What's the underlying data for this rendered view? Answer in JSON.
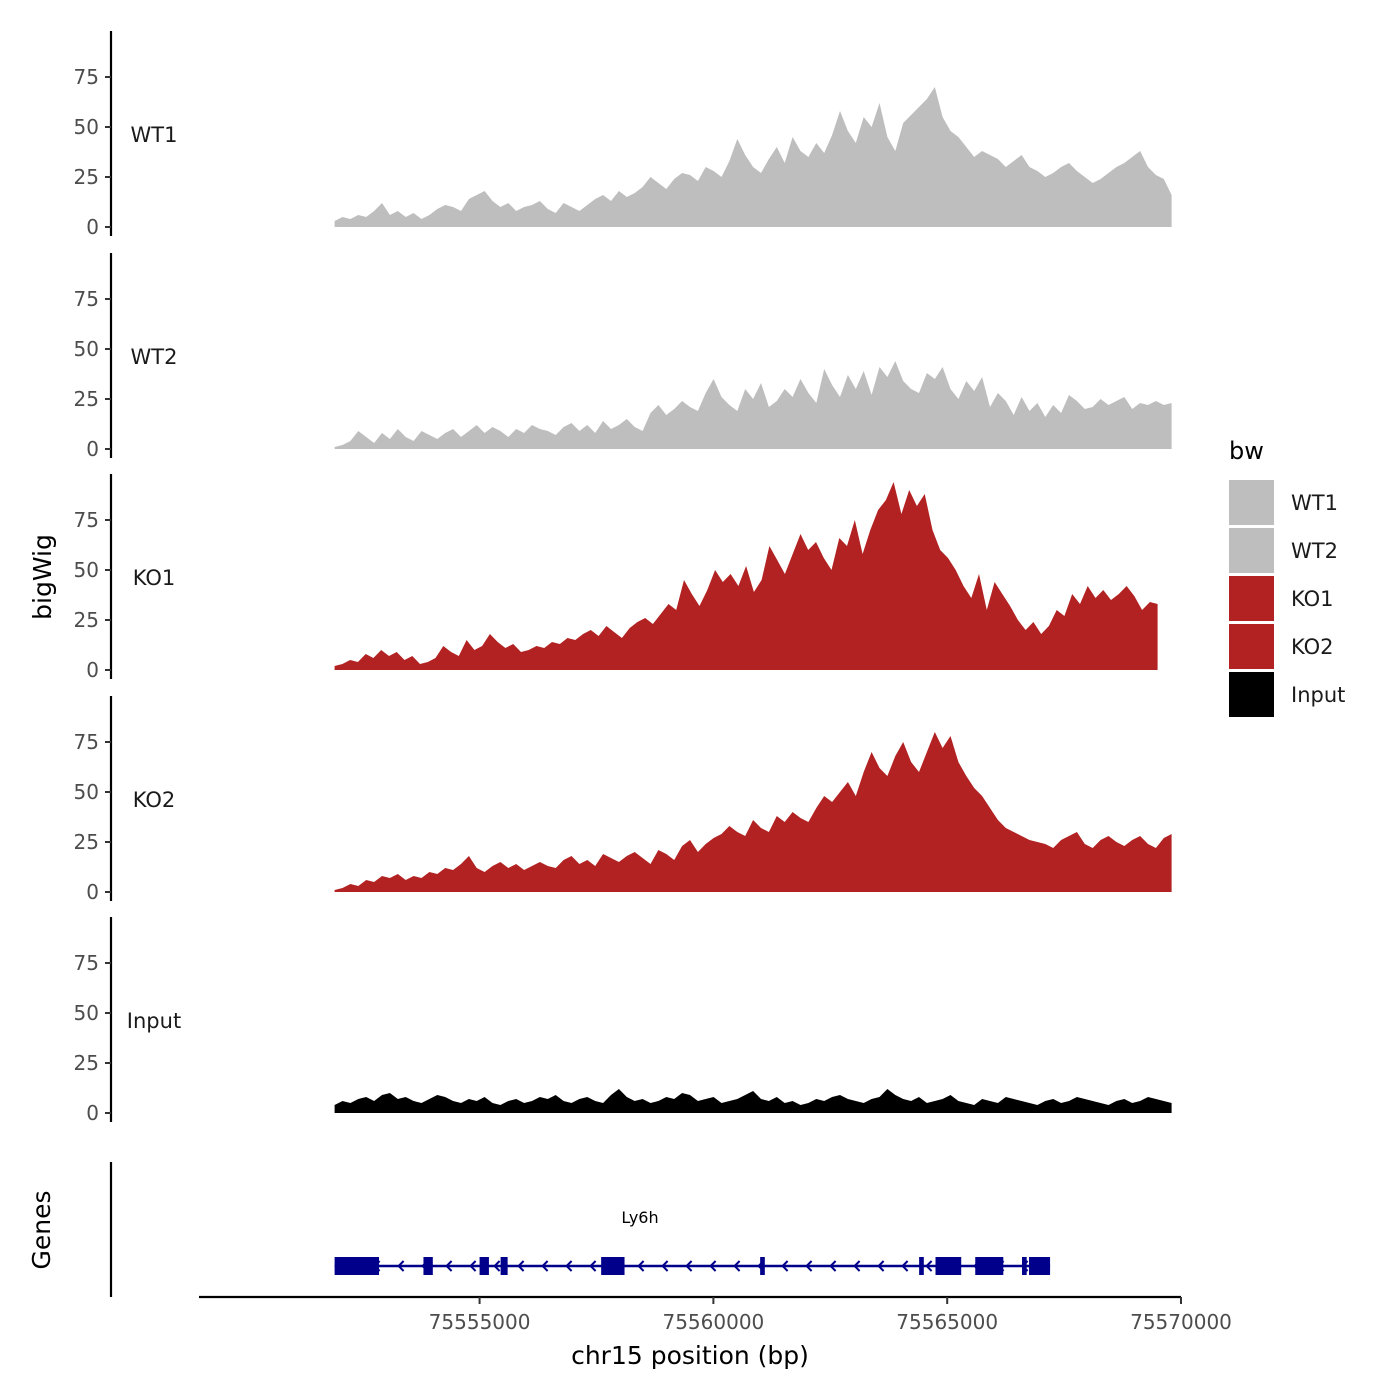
{
  "chart_data": {
    "type": "area",
    "ylabel": "bigWig",
    "xlabel": "chr15 position (bp)",
    "ylim": [
      0,
      95
    ],
    "yticks": [
      0,
      25,
      50,
      75
    ],
    "xlim": [
      75549000,
      75570000
    ],
    "xticks": [
      75555000,
      75560000,
      75565000,
      75570000
    ],
    "x_range_data": [
      75551900,
      75569800
    ],
    "gene_track_label": "Genes",
    "legend": {
      "title": "bw",
      "entries": [
        {
          "label": "WT1",
          "color": "#bebebe"
        },
        {
          "label": "WT2",
          "color": "#bebebe"
        },
        {
          "label": "KO1",
          "color": "#b22222"
        },
        {
          "label": "KO2",
          "color": "#b22222"
        },
        {
          "label": "Input",
          "color": "#000000"
        }
      ]
    },
    "tracks": [
      {
        "name": "WT1",
        "color": "#bebebe",
        "x_start": 75551900,
        "x_end": 75569800,
        "values": [
          3,
          5,
          4,
          6,
          5,
          8,
          12,
          6,
          8,
          5,
          7,
          4,
          6,
          9,
          11,
          10,
          8,
          14,
          16,
          18,
          13,
          10,
          12,
          8,
          10,
          11,
          13,
          9,
          7,
          12,
          10,
          8,
          11,
          14,
          16,
          13,
          18,
          15,
          17,
          20,
          25,
          22,
          19,
          24,
          27,
          26,
          23,
          30,
          28,
          25,
          33,
          44,
          36,
          30,
          27,
          34,
          40,
          32,
          45,
          38,
          35,
          42,
          37,
          46,
          58,
          48,
          42,
          55,
          50,
          62,
          45,
          38,
          52,
          56,
          60,
          64,
          70,
          55,
          48,
          45,
          40,
          35,
          38,
          36,
          34,
          30,
          33,
          36,
          30,
          28,
          25,
          27,
          30,
          32,
          28,
          25,
          22,
          24,
          27,
          30,
          32,
          35,
          38,
          30,
          26,
          24,
          16
        ]
      },
      {
        "name": "WT2",
        "color": "#bebebe",
        "x_start": 75551900,
        "x_end": 75569800,
        "values": [
          1,
          2,
          4,
          9,
          6,
          3,
          8,
          5,
          10,
          6,
          4,
          9,
          7,
          5,
          8,
          10,
          6,
          9,
          12,
          8,
          11,
          9,
          6,
          10,
          8,
          12,
          10,
          9,
          7,
          11,
          13,
          9,
          12,
          8,
          14,
          10,
          12,
          15,
          11,
          9,
          18,
          22,
          17,
          20,
          24,
          21,
          19,
          28,
          35,
          26,
          22,
          19,
          30,
          25,
          33,
          21,
          24,
          30,
          26,
          35,
          28,
          23,
          40,
          32,
          26,
          37,
          30,
          39,
          27,
          41,
          36,
          44,
          34,
          30,
          28,
          38,
          35,
          41,
          30,
          25,
          34,
          29,
          36,
          21,
          28,
          24,
          17,
          26,
          19,
          23,
          16,
          22,
          18,
          27,
          24,
          20,
          21,
          25,
          22,
          24,
          26,
          20,
          23,
          22,
          24,
          22,
          23
        ]
      },
      {
        "name": "KO1",
        "color": "#b22222",
        "x_start": 75551900,
        "x_end": 75569500,
        "values": [
          2,
          3,
          5,
          4,
          8,
          6,
          10,
          7,
          9,
          5,
          7,
          3,
          4,
          6,
          12,
          9,
          7,
          15,
          10,
          12,
          18,
          14,
          11,
          13,
          9,
          10,
          12,
          11,
          14,
          13,
          16,
          15,
          18,
          20,
          17,
          22,
          19,
          16,
          21,
          24,
          26,
          23,
          28,
          33,
          30,
          45,
          38,
          32,
          40,
          50,
          44,
          48,
          42,
          52,
          39,
          45,
          62,
          55,
          48,
          58,
          68,
          60,
          64,
          56,
          50,
          66,
          62,
          75,
          58,
          70,
          80,
          85,
          94,
          78,
          90,
          82,
          88,
          70,
          60,
          56,
          50,
          42,
          36,
          48,
          30,
          44,
          38,
          32,
          25,
          20,
          24,
          18,
          22,
          30,
          27,
          38,
          33,
          42,
          36,
          40,
          35,
          38,
          42,
          37,
          30,
          34,
          33
        ]
      },
      {
        "name": "KO2",
        "color": "#b22222",
        "x_start": 75551900,
        "x_end": 75569800,
        "values": [
          1,
          2,
          4,
          3,
          6,
          5,
          8,
          7,
          9,
          6,
          8,
          7,
          10,
          9,
          12,
          11,
          14,
          18,
          12,
          10,
          13,
          15,
          12,
          14,
          11,
          13,
          15,
          13,
          12,
          16,
          18,
          14,
          16,
          13,
          19,
          17,
          15,
          18,
          20,
          17,
          14,
          21,
          19,
          16,
          23,
          26,
          20,
          24,
          27,
          29,
          33,
          30,
          28,
          36,
          32,
          30,
          38,
          35,
          40,
          37,
          35,
          42,
          48,
          45,
          50,
          55,
          48,
          60,
          70,
          62,
          58,
          68,
          75,
          65,
          60,
          70,
          80,
          72,
          78,
          65,
          58,
          52,
          48,
          42,
          36,
          32,
          30,
          28,
          26,
          25,
          24,
          22,
          26,
          28,
          30,
          24,
          22,
          26,
          28,
          25,
          23,
          26,
          28,
          24,
          22,
          27,
          29
        ]
      },
      {
        "name": "Input",
        "color": "#000000",
        "x_start": 75551900,
        "x_end": 75569800,
        "values": [
          4,
          6,
          5,
          7,
          8,
          6,
          9,
          10,
          7,
          8,
          6,
          5,
          7,
          9,
          8,
          6,
          5,
          7,
          6,
          8,
          5,
          4,
          6,
          7,
          5,
          6,
          8,
          7,
          9,
          6,
          5,
          7,
          8,
          6,
          5,
          9,
          12,
          8,
          6,
          7,
          5,
          6,
          8,
          7,
          10,
          9,
          6,
          7,
          8,
          5,
          6,
          7,
          9,
          11,
          7,
          6,
          8,
          5,
          6,
          4,
          5,
          7,
          6,
          8,
          9,
          7,
          6,
          5,
          7,
          8,
          12,
          9,
          7,
          6,
          8,
          5,
          6,
          7,
          9,
          6,
          5,
          4,
          7,
          6,
          5,
          8,
          7,
          6,
          5,
          4,
          6,
          7,
          5,
          6,
          8,
          7,
          6,
          5,
          4,
          6,
          7,
          5,
          6,
          8,
          7,
          6,
          5
        ]
      }
    ],
    "genes": [
      {
        "name": "Ly6h",
        "strand": "-",
        "start": 75551900,
        "end": 75567200,
        "exons": [
          [
            75551900,
            75552850
          ],
          [
            75553800,
            75554000
          ],
          [
            75555000,
            75555200
          ],
          [
            75555450,
            75555600
          ],
          [
            75557600,
            75558100
          ],
          [
            75561000,
            75561100
          ],
          [
            75564400,
            75564500
          ],
          [
            75564750,
            75565300
          ],
          [
            75565600,
            75566200
          ],
          [
            75566600,
            75566700
          ],
          [
            75566750,
            75567200
          ]
        ]
      }
    ]
  }
}
